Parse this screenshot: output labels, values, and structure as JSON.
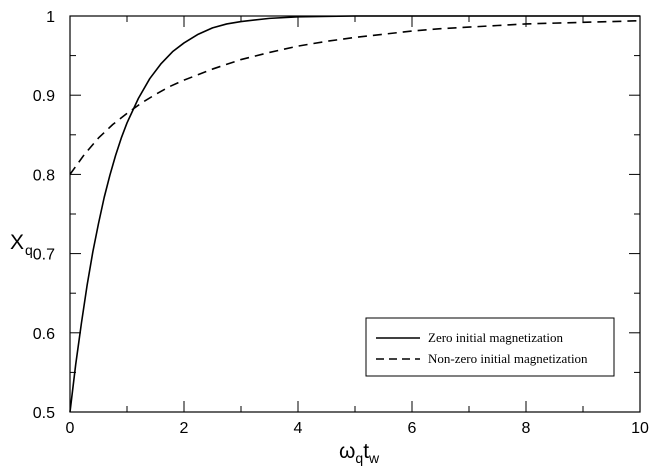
{
  "chart_data": {
    "type": "line",
    "title": "",
    "xlabel": {
      "base": "ω",
      "sub1": "q",
      "mid": "t",
      "sub2": "w"
    },
    "ylabel": {
      "base": "X",
      "sub": "q"
    },
    "xlim": [
      0,
      10
    ],
    "ylim": [
      0.5,
      1.0
    ],
    "xticks": [
      0,
      2,
      4,
      6,
      8,
      10
    ],
    "yticks": [
      0.5,
      0.6,
      0.7,
      0.8,
      0.9,
      1.0
    ],
    "ytick_labels": [
      "0.5",
      "0.6",
      "0.7",
      "0.8",
      "0.9",
      "1"
    ],
    "grid": false,
    "legend_position": "lower-right",
    "series": [
      {
        "name": "Zero initial magnetization",
        "style": "solid",
        "x": [
          0,
          0.1,
          0.2,
          0.3,
          0.4,
          0.5,
          0.6,
          0.7,
          0.8,
          0.9,
          1.0,
          1.2,
          1.4,
          1.6,
          1.8,
          2.0,
          2.25,
          2.5,
          2.75,
          3.0,
          3.5,
          4.0,
          5.0,
          6.0,
          7.0,
          8.0,
          9.0,
          10.0
        ],
        "y": [
          0.5,
          0.56,
          0.612,
          0.66,
          0.702,
          0.738,
          0.771,
          0.799,
          0.824,
          0.846,
          0.865,
          0.896,
          0.921,
          0.94,
          0.955,
          0.966,
          0.977,
          0.985,
          0.99,
          0.993,
          0.997,
          0.999,
          1.0,
          1.0,
          1.0,
          1.0,
          1.0,
          1.0
        ]
      },
      {
        "name": "Non-zero initial magnetization",
        "style": "dashed",
        "x": [
          0,
          0.25,
          0.5,
          0.75,
          1.0,
          1.25,
          1.5,
          1.75,
          2.0,
          2.5,
          3.0,
          3.5,
          4.0,
          4.5,
          5.0,
          5.5,
          6.0,
          6.5,
          7.0,
          7.5,
          8.0,
          8.5,
          9.0,
          9.5,
          10.0
        ],
        "y": [
          0.8,
          0.825,
          0.846,
          0.863,
          0.877,
          0.89,
          0.901,
          0.911,
          0.919,
          0.933,
          0.945,
          0.954,
          0.962,
          0.968,
          0.973,
          0.977,
          0.981,
          0.984,
          0.986,
          0.988,
          0.99,
          0.991,
          0.992,
          0.993,
          0.994
        ]
      }
    ]
  }
}
